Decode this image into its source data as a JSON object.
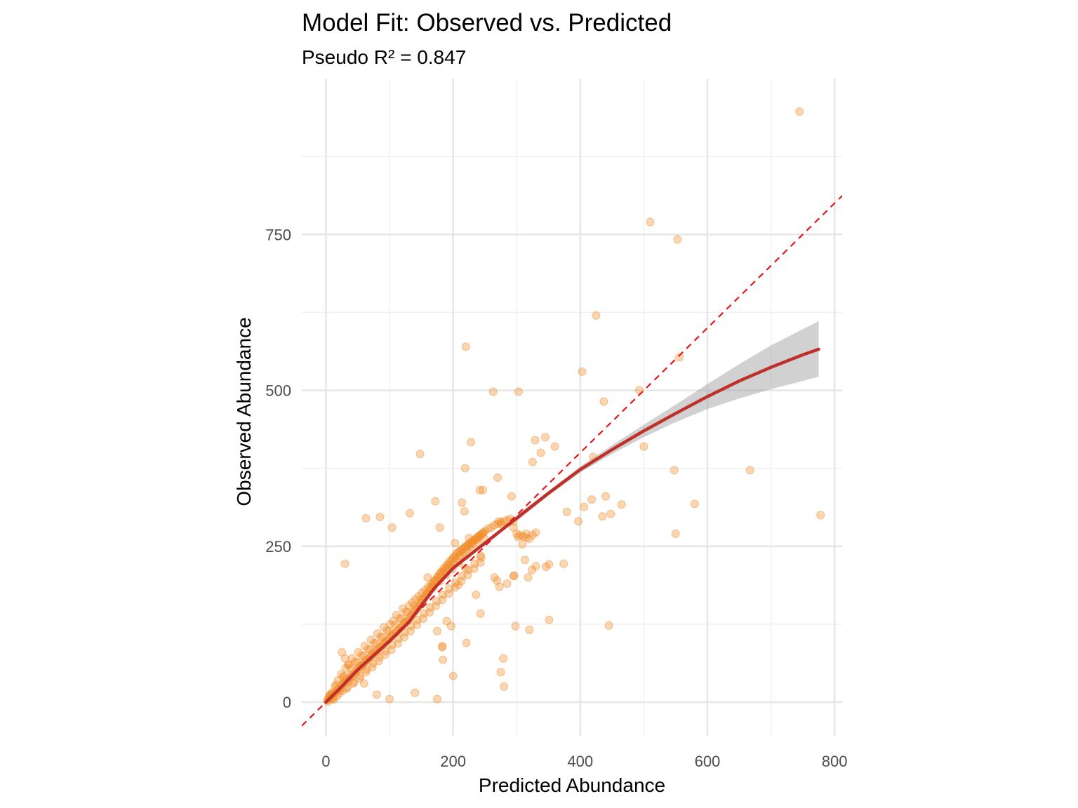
{
  "chart_data": {
    "type": "scatter",
    "title": "Model Fit: Observed vs. Predicted",
    "subtitle": "Pseudo R² = 0.847",
    "xlabel": "Predicted Abundance",
    "ylabel": "Observed Abundance",
    "xlim": [
      -38,
      812
    ],
    "ylim": [
      -55,
      1000
    ],
    "x_ticks": [
      0,
      200,
      400,
      600,
      800
    ],
    "x_tick_labels": [
      "0",
      "200",
      "400",
      "600",
      "800"
    ],
    "y_ticks": [
      0,
      250,
      500,
      750
    ],
    "y_tick_labels": [
      "0",
      "250",
      "500",
      "750"
    ],
    "grid": true,
    "colors": {
      "points": "#f08a24",
      "smooth_line": "#c0302a",
      "confidence_band": "#999999",
      "identity_line": "#e8161c",
      "grid": "#e5e5e5"
    },
    "identity_line": {
      "slope": 1,
      "intercept": 0,
      "style": "dashed"
    },
    "smooth_line": {
      "x": [
        0,
        20,
        50,
        100,
        130,
        150,
        170,
        200,
        250,
        300,
        350,
        400,
        450,
        500,
        550,
        600,
        650,
        700,
        750,
        775
      ],
      "y": [
        0,
        20,
        52,
        98,
        128,
        155,
        182,
        215,
        255,
        295,
        335,
        373,
        405,
        435,
        463,
        490,
        515,
        537,
        557,
        566
      ]
    },
    "confidence_band": {
      "x": [
        300,
        350,
        400,
        450,
        500,
        550,
        600,
        650,
        700,
        750,
        775
      ],
      "lower": [
        290,
        331,
        368,
        398,
        425,
        449,
        470,
        487,
        502,
        515,
        522
      ],
      "upper": [
        300,
        339,
        378,
        412,
        445,
        477,
        510,
        542,
        572,
        598,
        611
      ]
    },
    "outliers": {
      "x": [
        745,
        510,
        553,
        425,
        220,
        493,
        556,
        403,
        437,
        263,
        303,
        148,
        228,
        292,
        338,
        345,
        329,
        360,
        270,
        325,
        219,
        214,
        172,
        242,
        247,
        218,
        30,
        63,
        104,
        85,
        132,
        465,
        420,
        418,
        406,
        435,
        448,
        440,
        397,
        346,
        374,
        379,
        309,
        313,
        324,
        330,
        295,
        236,
        208,
        219,
        197,
        221,
        184,
        183,
        190,
        175,
        243,
        279,
        275,
        298,
        320,
        351,
        548,
        550,
        580,
        667,
        778,
        500,
        296,
        318,
        445,
        351,
        225,
        175,
        200,
        183,
        140,
        100,
        80,
        60,
        160,
        25,
        30,
        35,
        272,
        276,
        179,
        203,
        243,
        269,
        295,
        315,
        280,
        285,
        273,
        302,
        265
      ],
      "y": [
        947,
        770,
        742,
        620,
        570,
        500,
        553,
        530,
        482,
        498,
        498,
        398,
        417,
        330,
        400,
        425,
        420,
        410,
        360,
        385,
        375,
        320,
        322,
        340,
        340,
        306,
        222,
        295,
        280,
        297,
        303,
        317,
        393,
        325,
        313,
        298,
        302,
        330,
        290,
        217,
        222,
        305,
        253,
        228,
        212,
        218,
        202,
        172,
        188,
        215,
        122,
        95,
        68,
        90,
        130,
        114,
        142,
        70,
        48,
        122,
        116,
        132,
        372,
        270,
        318,
        372,
        300,
        410,
        203,
        200,
        123,
        221,
        263,
        5,
        42,
        88,
        15,
        5,
        12,
        30,
        200,
        80,
        70,
        60,
        290,
        285,
        280,
        255,
        235,
        195,
        290,
        270,
        25,
        190,
        185,
        265,
        200
      ]
    },
    "cluster_description_points": {
      "x": [
        2,
        4,
        6,
        8,
        10,
        12,
        15,
        18,
        20,
        22,
        25,
        28,
        30,
        33,
        35,
        38,
        40,
        42,
        45,
        48,
        50,
        52,
        55,
        58,
        60,
        62,
        65,
        68,
        70,
        72,
        75,
        78,
        80,
        82,
        85,
        88,
        90,
        92,
        95,
        98,
        100,
        103,
        105,
        108,
        110,
        113,
        115,
        118,
        120,
        123,
        125,
        128,
        130,
        133,
        135,
        138,
        140,
        143,
        145,
        148,
        150,
        153,
        155,
        158,
        160,
        163,
        165,
        168,
        170,
        173,
        175,
        178,
        180,
        183,
        185,
        188,
        190,
        193,
        195,
        198,
        200,
        203,
        205,
        208,
        210,
        213,
        215,
        218,
        220,
        223,
        225,
        228,
        230,
        233,
        235,
        238,
        240,
        243,
        245,
        248,
        250,
        255,
        260,
        265,
        270,
        275,
        280,
        285,
        290,
        295,
        300,
        305,
        310,
        315,
        320,
        325,
        330,
        5,
        9,
        14,
        19,
        24,
        27,
        31,
        36,
        41,
        46,
        51,
        56,
        61,
        66,
        71,
        76,
        81,
        86,
        91,
        96,
        101,
        106,
        111,
        116,
        121,
        126,
        131,
        136,
        141,
        146,
        151,
        156,
        161,
        166,
        171,
        176,
        181,
        186,
        191,
        196,
        201,
        206,
        211,
        216,
        221,
        226,
        231,
        236,
        241,
        246,
        12,
        17,
        26,
        34,
        43,
        53,
        63,
        73,
        83,
        93,
        103,
        113,
        123,
        133,
        143,
        153,
        163,
        173,
        183,
        193,
        203,
        213,
        223,
        233,
        243,
        7,
        16,
        29,
        39,
        49,
        59,
        69,
        79,
        89,
        99,
        109,
        119,
        129,
        139,
        149,
        159,
        169,
        179,
        189,
        199,
        209,
        219,
        229,
        239,
        249,
        3,
        11,
        21,
        32,
        44,
        54,
        64,
        74,
        84,
        94,
        104,
        114,
        124,
        134,
        144,
        154,
        164,
        174,
        184,
        194,
        204,
        214,
        224,
        234,
        244
      ],
      "y": [
        3,
        5,
        8,
        6,
        12,
        14,
        16,
        20,
        22,
        20,
        28,
        30,
        32,
        36,
        35,
        40,
        44,
        42,
        46,
        52,
        50,
        55,
        58,
        60,
        62,
        65,
        68,
        70,
        72,
        75,
        78,
        82,
        80,
        84,
        88,
        90,
        92,
        95,
        98,
        100,
        102,
        106,
        108,
        110,
        112,
        115,
        118,
        120,
        122,
        126,
        128,
        130,
        132,
        136,
        140,
        142,
        146,
        150,
        152,
        156,
        160,
        164,
        168,
        172,
        175,
        180,
        184,
        188,
        192,
        195,
        200,
        204,
        208,
        210,
        214,
        216,
        220,
        222,
        226,
        228,
        232,
        234,
        238,
        240,
        242,
        244,
        246,
        248,
        250,
        252,
        254,
        256,
        258,
        260,
        262,
        264,
        266,
        268,
        270,
        272,
        274,
        278,
        280,
        284,
        286,
        288,
        290,
        292,
        294,
        280,
        270,
        268,
        266,
        264,
        262,
        268,
        272,
        10,
        15,
        25,
        35,
        45,
        40,
        55,
        60,
        70,
        65,
        80,
        75,
        90,
        85,
        100,
        95,
        110,
        105,
        120,
        115,
        125,
        130,
        140,
        135,
        150,
        145,
        155,
        160,
        165,
        170,
        175,
        180,
        185,
        190,
        195,
        200,
        205,
        210,
        215,
        220,
        225,
        230,
        235,
        240,
        245,
        250,
        255,
        260,
        265,
        270,
        4,
        10,
        18,
        24,
        30,
        38,
        48,
        56,
        66,
        76,
        84,
        94,
        104,
        114,
        124,
        134,
        144,
        154,
        164,
        174,
        184,
        194,
        204,
        214,
        224,
        12,
        28,
        42,
        54,
        64,
        74,
        84,
        94,
        104,
        114,
        124,
        134,
        144,
        154,
        164,
        174,
        184,
        194,
        204,
        214,
        224,
        234,
        244,
        254,
        262,
        1,
        6,
        14,
        22,
        32,
        42,
        52,
        62,
        72,
        82,
        92,
        102,
        112,
        122,
        132,
        142,
        152,
        162,
        172,
        182,
        192,
        202,
        212,
        222,
        232
      ]
    }
  }
}
